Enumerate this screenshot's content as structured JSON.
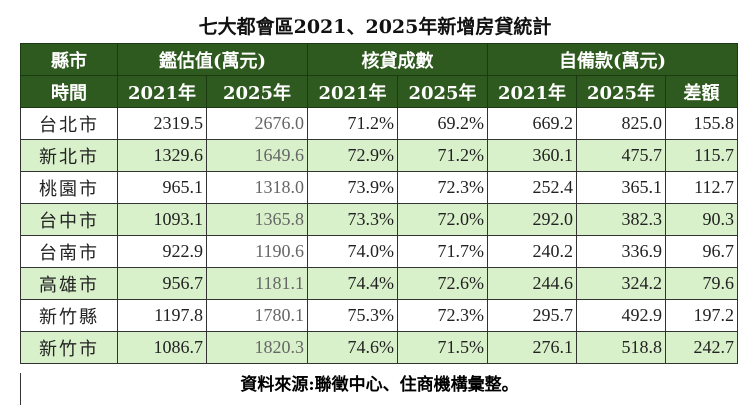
{
  "title": "七大都會區2021、2025年新增房貸統計",
  "header": {
    "city": "縣市",
    "appraisal": "鑑估值(萬元)",
    "ratio": "核貸成數",
    "down": "自備款(萬元)",
    "time": "時間",
    "y2021": "2021年",
    "y2025": "2025年",
    "diff": "差額"
  },
  "rows": [
    {
      "city": "台北市",
      "a21": "2319.5",
      "a25": "2676.0",
      "r21": "71.2%",
      "r25": "69.2%",
      "d21": "669.2",
      "d25": "825.0",
      "diff": "155.8"
    },
    {
      "city": "新北市",
      "a21": "1329.6",
      "a25": "1649.6",
      "r21": "72.9%",
      "r25": "71.2%",
      "d21": "360.1",
      "d25": "475.7",
      "diff": "115.7"
    },
    {
      "city": "桃園市",
      "a21": "965.1",
      "a25": "1318.0",
      "r21": "73.9%",
      "r25": "72.3%",
      "d21": "252.4",
      "d25": "365.1",
      "diff": "112.7"
    },
    {
      "city": "台中市",
      "a21": "1093.1",
      "a25": "1365.8",
      "r21": "73.3%",
      "r25": "72.0%",
      "d21": "292.0",
      "d25": "382.3",
      "diff": "90.3"
    },
    {
      "city": "台南市",
      "a21": "922.9",
      "a25": "1190.6",
      "r21": "74.0%",
      "r25": "71.7%",
      "d21": "240.2",
      "d25": "336.9",
      "diff": "96.7"
    },
    {
      "city": "高雄市",
      "a21": "956.7",
      "a25": "1181.1",
      "r21": "74.4%",
      "r25": "72.6%",
      "d21": "244.6",
      "d25": "324.2",
      "diff": "79.6"
    },
    {
      "city": "新竹縣",
      "a21": "1197.8",
      "a25": "1780.1",
      "r21": "75.3%",
      "r25": "72.3%",
      "d21": "295.7",
      "d25": "492.9",
      "diff": "197.2"
    },
    {
      "city": "新竹市",
      "a21": "1086.7",
      "a25": "1820.3",
      "r21": "74.6%",
      "r25": "71.5%",
      "d21": "276.1",
      "d25": "518.8",
      "diff": "242.7"
    }
  ],
  "footer": "資料來源:聯徵中心、住商機構彙整。",
  "colors": {
    "header_bg": "#2f5a1f",
    "alt_row_bg": "#d9f1cb"
  }
}
